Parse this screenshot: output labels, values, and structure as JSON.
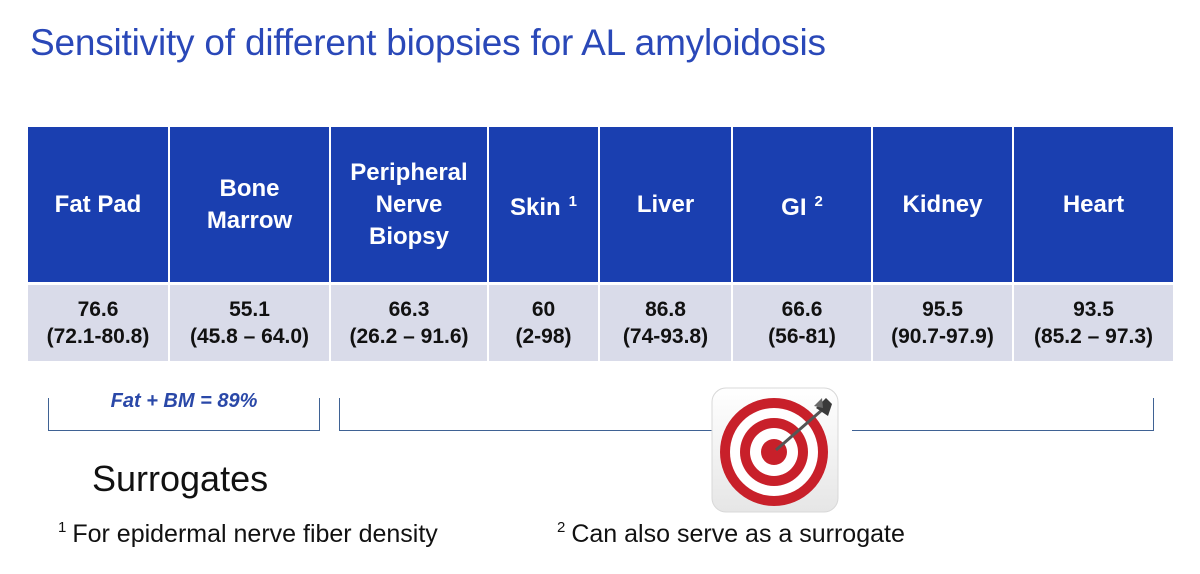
{
  "title": "Sensitivity of different biopsies for AL amyloidosis",
  "columns": [
    {
      "header": "Fat Pad",
      "sup": "",
      "value": "76.6",
      "range": "(72.1-80.8)"
    },
    {
      "header": "Bone\nMarrow",
      "sup": "",
      "value": "55.1",
      "range": "(45.8 – 64.0)"
    },
    {
      "header": "Peripheral\nNerve\nBiopsy",
      "sup": "",
      "value": "66.3",
      "range": "(26.2 – 91.6)"
    },
    {
      "header": "Skin",
      "sup": "1",
      "value": "60",
      "range": "(2-98)"
    },
    {
      "header": "Liver",
      "sup": "",
      "value": "86.8",
      "range": "(74-93.8)"
    },
    {
      "header": "GI",
      "sup": "2",
      "value": "66.6",
      "range": "(56-81)"
    },
    {
      "header": "Kidney",
      "sup": "",
      "value": "95.5",
      "range": "(90.7-97.9)"
    },
    {
      "header": "Heart",
      "sup": "",
      "value": "93.5",
      "range": "(85.2 – 97.3)"
    }
  ],
  "bracket_label": "Fat + BM = 89%",
  "surrogates_label": "Surrogates",
  "footnotes": [
    {
      "mark": "1",
      "text": "For epidermal nerve fiber density"
    },
    {
      "mark": "2",
      "text": "Can also serve as a surrogate"
    }
  ],
  "icons": {
    "target": "target-dartboard-icon"
  },
  "colors": {
    "title": "#2a48b8",
    "header_bg": "#1a3fb0",
    "value_bg": "#d9dbe9",
    "target_red": "#c8202a"
  }
}
